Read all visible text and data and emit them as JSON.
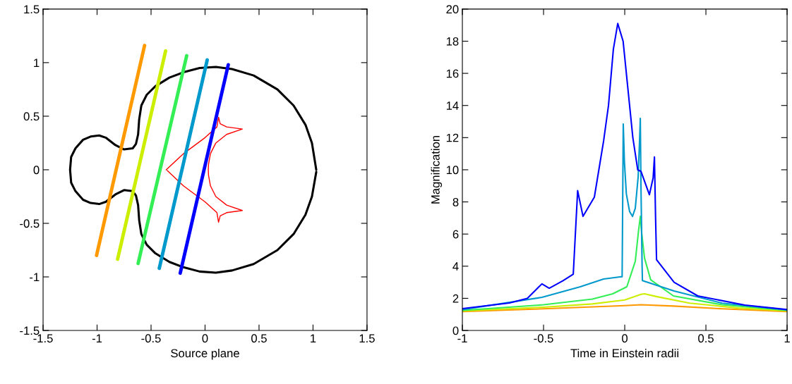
{
  "chart_data": [
    {
      "type": "line",
      "xlabel": "Source plane",
      "xlim": [
        -1.5,
        1.5
      ],
      "ylim": [
        -1.5,
        1.5
      ],
      "xticks": [
        -1.5,
        -1,
        -0.5,
        0,
        0.5,
        1,
        1.5
      ],
      "yticks": [
        -1.5,
        -1,
        -0.5,
        0,
        0.5,
        1,
        1.5
      ],
      "grid": false,
      "legend": false,
      "series": [
        {
          "color": "#000000",
          "x": [
            1.03,
            0.99,
            0.93,
            0.82,
            0.67,
            0.45,
            0.25,
            0.1,
            -0.05,
            -0.2,
            -0.33,
            -0.46,
            -0.54,
            -0.59,
            -0.61,
            -0.62,
            -0.64,
            -0.67,
            -0.75,
            -0.83,
            -0.92,
            -0.98,
            -1.06,
            -1.13,
            -1.2,
            -1.24,
            -1.25,
            -1.24,
            -1.2,
            -1.13,
            -1.06,
            -0.98,
            -0.92,
            -0.83,
            -0.75,
            -0.67,
            -0.64,
            -0.62,
            -0.61,
            -0.59,
            -0.54,
            -0.46,
            -0.33,
            -0.2,
            -0.05,
            0.1,
            0.25,
            0.45,
            0.67,
            0.82,
            0.93,
            0.99,
            1.03
          ],
          "values": [
            0,
            0.25,
            0.42,
            0.6,
            0.75,
            0.88,
            0.94,
            0.96,
            0.95,
            0.91,
            0.86,
            0.78,
            0.7,
            0.6,
            0.47,
            0.33,
            0.24,
            0.2,
            0.19,
            0.23,
            0.3,
            0.32,
            0.31,
            0.28,
            0.2,
            0.12,
            0,
            -0.12,
            -0.2,
            -0.28,
            -0.31,
            -0.32,
            -0.3,
            -0.23,
            -0.19,
            -0.2,
            -0.24,
            -0.33,
            -0.47,
            -0.6,
            -0.7,
            -0.78,
            -0.86,
            -0.91,
            -0.95,
            -0.96,
            -0.94,
            -0.88,
            -0.75,
            -0.6,
            -0.42,
            -0.25,
            -0.02
          ]
        },
        {
          "color": "#ff0000",
          "x": [
            -0.36,
            -0.2,
            0.0,
            0.11,
            0.125,
            0.14,
            0.2,
            0.345,
            0.2,
            0.1,
            0.05,
            0.032,
            0.03,
            0.032,
            0.05,
            0.1,
            0.2,
            0.345,
            0.2,
            0.14,
            0.125,
            0.11,
            0.0,
            -0.2,
            -0.35
          ],
          "values": [
            0,
            0.15,
            0.3,
            0.4,
            0.49,
            0.43,
            0.4,
            0.38,
            0.33,
            0.25,
            0.15,
            0.05,
            0,
            -0.05,
            -0.15,
            -0.25,
            -0.33,
            -0.38,
            -0.4,
            -0.43,
            -0.49,
            -0.4,
            -0.3,
            -0.15,
            -0.007
          ]
        },
        {
          "color": "#ff9900",
          "x": [
            -1.005,
            -0.56
          ],
          "values": [
            -0.8,
            1.16
          ]
        },
        {
          "color": "#ccee00",
          "x": [
            -0.81,
            -0.365
          ],
          "values": [
            -0.835,
            1.11
          ]
        },
        {
          "color": "#33ee55",
          "x": [
            -0.62,
            -0.17
          ],
          "values": [
            -0.875,
            1.065
          ]
        },
        {
          "color": "#0099cc",
          "x": [
            -0.424,
            0.02
          ],
          "values": [
            -0.92,
            1.025
          ]
        },
        {
          "color": "#0000ff",
          "x": [
            -0.23,
            0.215
          ],
          "values": [
            -0.965,
            0.98
          ]
        }
      ]
    },
    {
      "type": "line",
      "xlabel": "Time in Einstein radii",
      "ylabel": "Magnification",
      "xlim": [
        -1,
        1
      ],
      "ylim": [
        0,
        20
      ],
      "xticks": [
        -1,
        -0.5,
        0,
        0.5,
        1
      ],
      "yticks": [
        0,
        2,
        4,
        6,
        8,
        10,
        12,
        14,
        16,
        18,
        20
      ],
      "grid": false,
      "legend": false,
      "series": [
        {
          "color": "#ff9900",
          "x": [
            -1,
            -0.5,
            0,
            0.1,
            0.3,
            0.6,
            1
          ],
          "values": [
            1.18,
            1.35,
            1.55,
            1.6,
            1.52,
            1.35,
            1.18
          ]
        },
        {
          "color": "#ccee00",
          "x": [
            -1,
            -0.5,
            -0.2,
            0,
            0.1,
            0.122,
            0.2,
            0.4,
            0.7,
            1
          ],
          "values": [
            1.22,
            1.45,
            1.65,
            1.9,
            2.25,
            2.28,
            2.1,
            1.7,
            1.4,
            1.22
          ]
        },
        {
          "color": "#33ee55",
          "x": [
            -1,
            -0.5,
            -0.2,
            -0.074,
            0.013,
            0.065,
            0.085,
            0.096,
            0.105,
            0.122,
            0.16,
            0.3,
            0.6,
            1
          ],
          "values": [
            1.25,
            1.6,
            1.95,
            2.28,
            2.72,
            4.3,
            6.2,
            7.1,
            6.0,
            4.5,
            3.15,
            2.15,
            1.6,
            1.25
          ]
        },
        {
          "color": "#0099cc",
          "x": [
            -1,
            -0.51,
            -0.274,
            -0.13,
            -0.03,
            -0.016,
            -0.009,
            -0.002,
            0.01,
            0.03,
            0.048,
            0.065,
            0.083,
            0.092,
            0.096,
            0.1,
            0.107,
            0.109,
            0.304,
            0.6,
            1
          ],
          "values": [
            1.3,
            2.06,
            2.72,
            3.2,
            3.33,
            3.35,
            12.85,
            10.5,
            8.5,
            7.4,
            7.1,
            7.6,
            9.6,
            12,
            13.2,
            9,
            4,
            3.1,
            2.46,
            1.7,
            1.28
          ]
        },
        {
          "color": "#0000ff",
          "x": [
            -1,
            -0.71,
            -0.6,
            -0.51,
            -0.465,
            -0.38,
            -0.317,
            -0.29,
            -0.257,
            -0.187,
            -0.13,
            -0.1,
            -0.07,
            -0.043,
            -0.01,
            0.02,
            0.05,
            0.08,
            0.1,
            0.152,
            0.175,
            0.183,
            0.19,
            0.196,
            0.304,
            0.45,
            0.74,
            1
          ],
          "values": [
            1.36,
            1.71,
            2.0,
            2.9,
            2.63,
            3.1,
            3.5,
            8.7,
            7.1,
            8.3,
            11.8,
            14,
            17.5,
            19.1,
            18,
            15,
            12,
            10,
            9.9,
            8.45,
            9.5,
            10.8,
            7,
            4.4,
            3.0,
            2.15,
            1.58,
            1.3
          ]
        }
      ]
    }
  ]
}
